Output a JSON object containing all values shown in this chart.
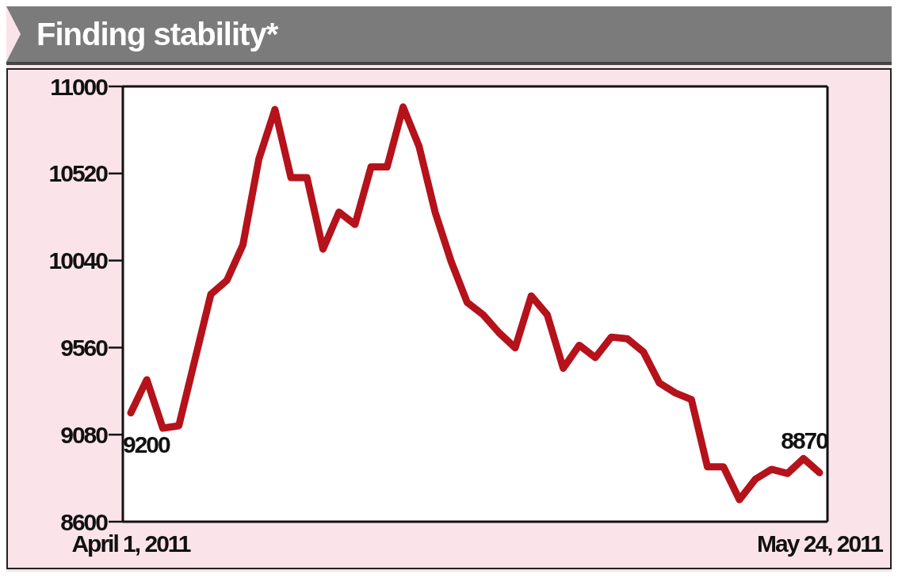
{
  "chart_data": {
    "type": "line",
    "title": "Finding stability*",
    "categories": [
      "April 1, 2011",
      null,
      null,
      null,
      null,
      null,
      null,
      null,
      null,
      null,
      null,
      null,
      null,
      null,
      null,
      null,
      null,
      null,
      null,
      null,
      null,
      null,
      null,
      null,
      null,
      null,
      null,
      null,
      null,
      null,
      null,
      null,
      null,
      null,
      null,
      null,
      null,
      null,
      null,
      null,
      null,
      null,
      null,
      "May 24, 2011"
    ],
    "series": [
      {
        "color": "#b5121b",
        "values": [
          9200,
          9383,
          9116,
          9129,
          9492,
          9854,
          9931,
          10126,
          10601,
          10873,
          10497,
          10497,
          10103,
          10307,
          10239,
          10556,
          10556,
          10887,
          10669,
          10307,
          10035,
          9809,
          9741,
          9641,
          9559,
          9845,
          9741,
          9446,
          9573,
          9505,
          9618,
          9609,
          9537,
          9365,
          9310,
          9274,
          8903,
          8903,
          8721,
          8835,
          8889,
          8866,
          8948,
          8870
        ],
        "value_labels": [
          "9200",
          null,
          null,
          null,
          null,
          null,
          null,
          null,
          null,
          null,
          null,
          null,
          null,
          null,
          null,
          null,
          null,
          null,
          null,
          null,
          null,
          null,
          null,
          null,
          null,
          null,
          null,
          null,
          null,
          null,
          null,
          null,
          null,
          null,
          null,
          null,
          null,
          null,
          null,
          null,
          null,
          null,
          null,
          "8870"
        ]
      }
    ],
    "ylim": [
      8600,
      11000
    ],
    "yticks": [
      8600,
      9080,
      9560,
      10040,
      10520,
      11000
    ],
    "legend": false,
    "marker": "none",
    "line_style": "solid"
  }
}
